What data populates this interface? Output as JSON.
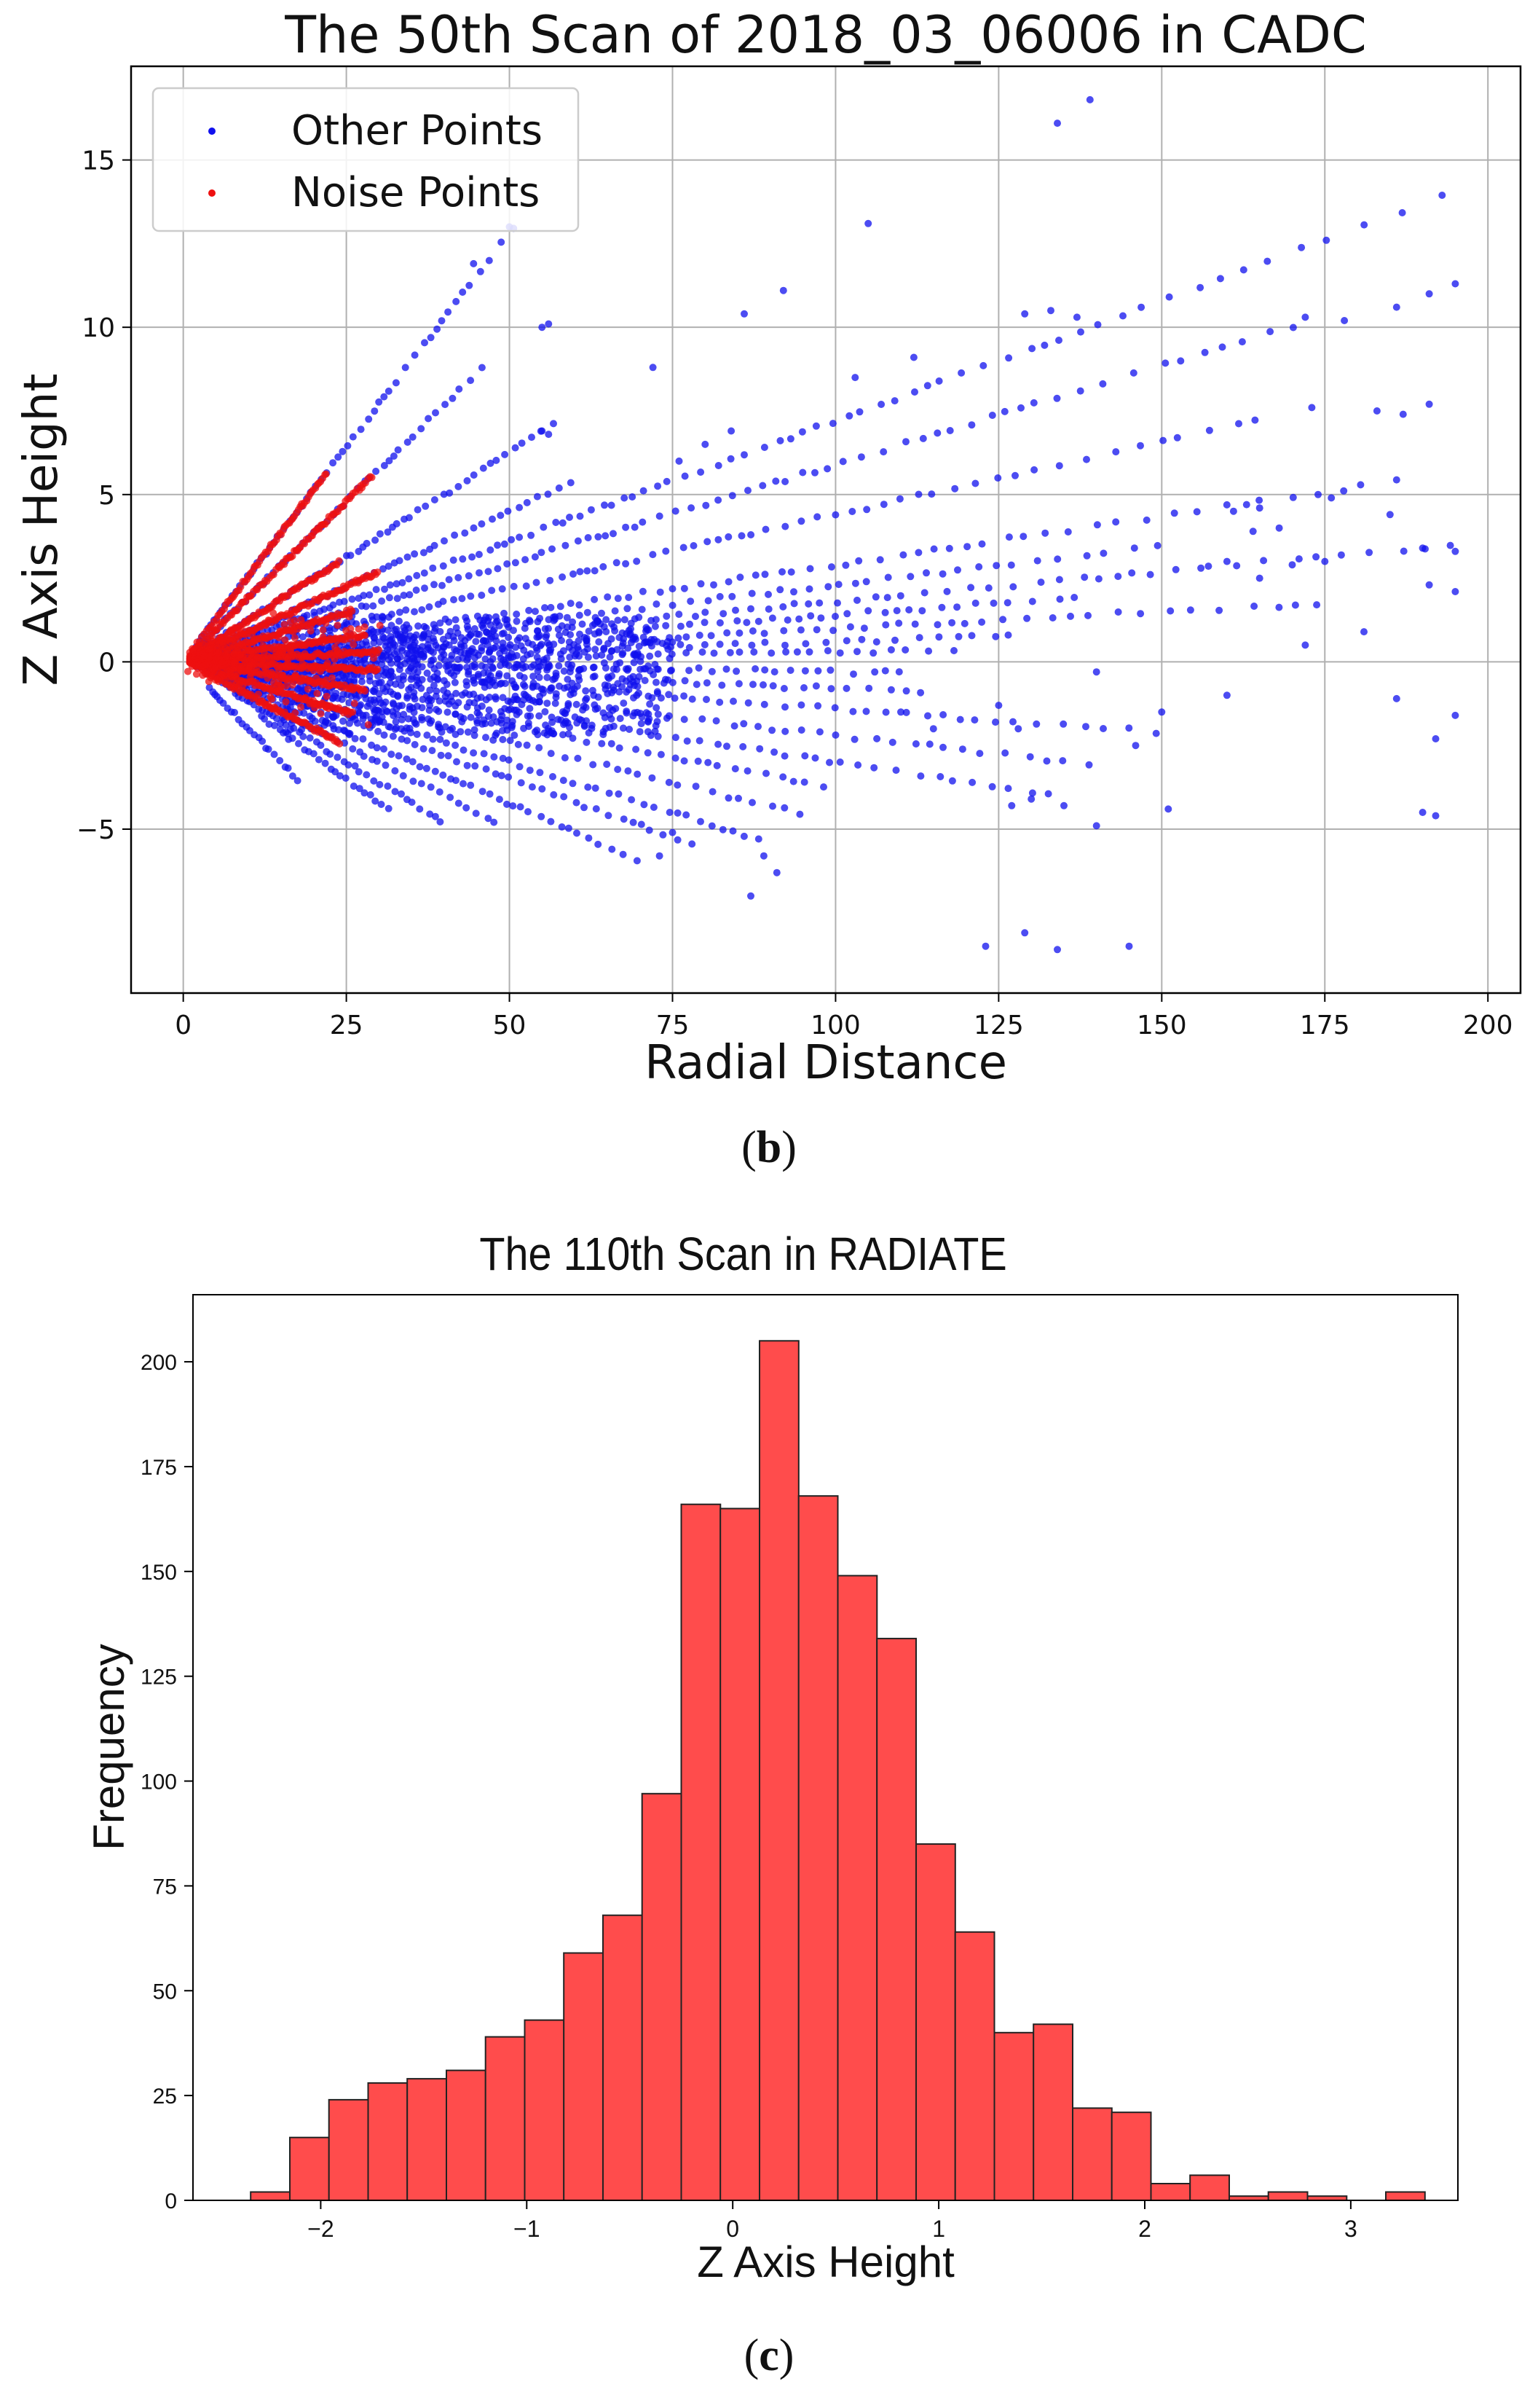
{
  "panels": [
    {
      "label": "b"
    },
    {
      "label": "c"
    }
  ],
  "chart_data": [
    {
      "type": "scatter",
      "title": "The 50th Scan of 2018_03_06006 in CADC",
      "xlabel": "Radial Distance",
      "ylabel": "Z Axis Height",
      "xlim": [
        -8,
        205
      ],
      "ylim": [
        -9.9,
        17.8
      ],
      "xticks": [
        0,
        25,
        50,
        75,
        100,
        125,
        150,
        175,
        200
      ],
      "yticks": [
        -5,
        0,
        5,
        10,
        15
      ],
      "grid": true,
      "legend_position": "top-left",
      "series": [
        {
          "name": "Other Points",
          "color": "#1010ee",
          "rays": [
            {
              "slope": 0.257,
              "x_start": 2,
              "x_end": 52
            },
            {
              "slope": 0.192,
              "x_start": 2,
              "x_end": 46
            },
            {
              "slope": 0.125,
              "x_start": 2,
              "x_end": 57
            },
            {
              "slope": 0.09,
              "x_start": 2,
              "x_end": 60
            },
            {
              "slope": 0.072,
              "x_start": 2,
              "x_end": 196
            },
            {
              "slope": 0.059,
              "x_start": 2,
              "x_end": 173
            },
            {
              "slope": 0.044,
              "x_start": 2,
              "x_end": 168
            },
            {
              "slope": 0.029,
              "x_start": 2,
              "x_end": 190
            },
            {
              "slope": 0.023,
              "x_start": 2,
              "x_end": 150
            },
            {
              "slope": 0.018,
              "x_start": 2,
              "x_end": 195
            },
            {
              "slope": 0.014,
              "x_start": 2,
              "x_end": 140
            },
            {
              "slope": 0.01,
              "x_start": 2,
              "x_end": 175
            },
            {
              "slope": 0.006,
              "x_start": 2,
              "x_end": 130
            },
            {
              "slope": 0.003,
              "x_start": 2,
              "x_end": 120
            },
            {
              "slope": -0.003,
              "x_start": 2,
              "x_end": 110
            },
            {
              "slope": -0.008,
              "x_start": 2,
              "x_end": 115
            },
            {
              "slope": -0.014,
              "x_start": 2,
              "x_end": 150
            },
            {
              "slope": -0.022,
              "x_start": 2,
              "x_end": 140
            },
            {
              "slope": -0.03,
              "x_start": 2,
              "x_end": 135
            },
            {
              "slope": -0.038,
              "x_start": 2,
              "x_end": 100
            },
            {
              "slope": -0.048,
              "x_start": 2,
              "x_end": 95
            },
            {
              "slope": -0.06,
              "x_start": 3,
              "x_end": 90
            },
            {
              "slope": -0.07,
              "x_start": 4,
              "x_end": 80
            },
            {
              "slope": -0.085,
              "x_start": 5,
              "x_end": 70
            },
            {
              "slope": -0.1,
              "x_start": 6,
              "x_end": 48
            },
            {
              "slope": -0.12,
              "x_start": 8,
              "x_end": 40
            },
            {
              "slope": -0.14,
              "x_start": 12,
              "x_end": 32
            },
            {
              "slope": -0.2,
              "x_start": 4,
              "x_end": 18
            }
          ],
          "isolated_points": [
            [
              139,
              16.8
            ],
            [
              134,
              16.1
            ],
            [
              105,
              13.1
            ],
            [
              50,
              13.0
            ],
            [
              44.5,
              11.9
            ],
            [
              92,
              11.1
            ],
            [
              86,
              10.4
            ],
            [
              112,
              9.1
            ],
            [
              103,
              8.5
            ],
            [
              72,
              8.8
            ],
            [
              172,
              10.3
            ],
            [
              178,
              10.2
            ],
            [
              186,
              10.6
            ],
            [
              191,
              11.0
            ],
            [
              195,
              11.3
            ],
            [
              129,
              10.4
            ],
            [
              133,
              10.5
            ],
            [
              137,
              10.3
            ],
            [
              191,
              7.7
            ],
            [
              187,
              7.4
            ],
            [
              183,
              7.5
            ],
            [
              173,
              7.6
            ],
            [
              176,
              4.9
            ],
            [
              185,
              4.4
            ],
            [
              190,
              3.4
            ],
            [
              195,
              3.3
            ],
            [
              191,
              2.3
            ],
            [
              195,
              2.1
            ],
            [
              181,
              0.9
            ],
            [
              172,
              0.5
            ],
            [
              186,
              -1.1
            ],
            [
              192,
              -2.3
            ],
            [
              195,
              -1.6
            ],
            [
              190,
              -4.5
            ],
            [
              192,
              -4.6
            ],
            [
              160,
              -1.0
            ],
            [
              150,
              -1.5
            ],
            [
              151,
              -4.4
            ],
            [
              146,
              -2.5
            ],
            [
              140,
              -4.9
            ],
            [
              135,
              -4.3
            ],
            [
              130,
              -4.1
            ],
            [
              127,
              -4.3
            ],
            [
              123,
              -8.5
            ],
            [
              129,
              -8.1
            ],
            [
              134,
              -8.6
            ],
            [
              145,
              -8.5
            ],
            [
              91,
              -6.3
            ],
            [
              89,
              -5.8
            ],
            [
              87,
              -7.0
            ],
            [
              75,
              -5.1
            ],
            [
              73,
              -5.8
            ],
            [
              140,
              -0.3
            ],
            [
              128,
              -2.0
            ],
            [
              125,
              -1.3
            ],
            [
              115,
              -2.0
            ],
            [
              110,
              -1.5
            ],
            [
              156,
              2.8
            ],
            [
              160,
              3.0
            ],
            [
              164,
              3.9
            ],
            [
              165,
              2.5
            ],
            [
              170,
              2.9
            ],
            [
              175,
              3.0
            ],
            [
              168,
              4.0
            ],
            [
              161,
              4.5
            ],
            [
              163,
              4.7
            ],
            [
              165,
              4.6
            ],
            [
              80,
              6.5
            ],
            [
              84,
              6.9
            ],
            [
              76,
              6.0
            ],
            [
              56,
              6.8
            ],
            [
              55,
              6.9
            ],
            [
              56,
              10.1
            ],
            [
              55,
              10.0
            ]
          ]
        },
        {
          "name": "Noise Points",
          "color": "#ee1010",
          "rays": [
            {
              "slope": 0.257,
              "x_start": 1,
              "x_end": 22
            },
            {
              "slope": 0.192,
              "x_start": 1,
              "x_end": 29
            },
            {
              "slope": 0.125,
              "x_start": 1,
              "x_end": 24
            },
            {
              "slope": 0.09,
              "x_start": 1,
              "x_end": 30
            },
            {
              "slope": 0.059,
              "x_start": 1,
              "x_end": 26
            },
            {
              "slope": 0.029,
              "x_start": 1,
              "x_end": 28
            },
            {
              "slope": 0.01,
              "x_start": 1,
              "x_end": 30
            },
            {
              "slope": -0.008,
              "x_start": 1,
              "x_end": 30
            },
            {
              "slope": -0.03,
              "x_start": 1,
              "x_end": 28
            },
            {
              "slope": -0.06,
              "x_start": 1,
              "x_end": 26
            },
            {
              "slope": -0.1,
              "x_start": 3,
              "x_end": 24
            }
          ],
          "cluster": {
            "x_range": [
              0.5,
              31
            ],
            "y_range": [
              -2.0,
              1.5
            ]
          }
        }
      ]
    },
    {
      "type": "bar",
      "title": "The 110th Scan in RADIATE",
      "xlabel": "Z Axis Height",
      "ylabel": "Frequency",
      "xlim": [
        -2.62,
        3.52
      ],
      "ylim": [
        0,
        216
      ],
      "xticks": [
        -2,
        -1,
        0,
        1,
        2,
        3
      ],
      "yticks": [
        0,
        25,
        50,
        75,
        100,
        125,
        150,
        175,
        200
      ],
      "grid": false,
      "bar_color": "#ff4c4c",
      "bin_start": -2.34,
      "bin_width": 0.19,
      "values": [
        2,
        15,
        24,
        28,
        29,
        31,
        39,
        43,
        59,
        68,
        97,
        166,
        165,
        205,
        168,
        149,
        134,
        85,
        64,
        40,
        42,
        22,
        21,
        4,
        6,
        1,
        2,
        1,
        0,
        2
      ]
    }
  ]
}
